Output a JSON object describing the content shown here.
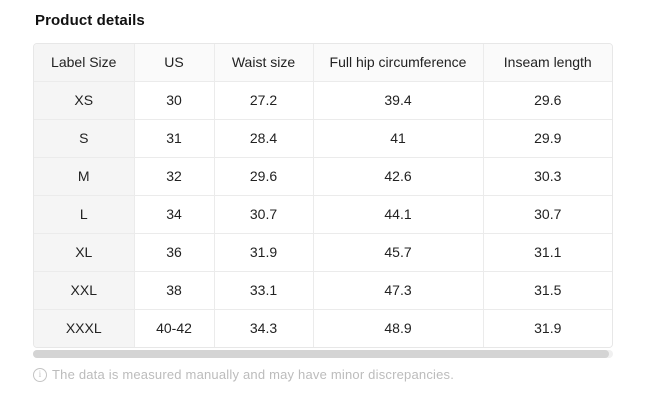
{
  "page": {
    "title": "Product details",
    "footer_note": "The data is measured manually and may have minor discrepancies.",
    "info_icon_glyph": "i"
  },
  "table": {
    "columns": [
      "Label Size",
      "US",
      "Waist size",
      "Full hip circumference",
      "Inseam length"
    ],
    "rows": [
      [
        "XS",
        "30",
        "27.2",
        "39.4",
        "29.6"
      ],
      [
        "S",
        "31",
        "28.4",
        "41",
        "29.9"
      ],
      [
        "M",
        "32",
        "29.6",
        "42.6",
        "30.3"
      ],
      [
        "L",
        "34",
        "30.7",
        "44.1",
        "30.7"
      ],
      [
        "XL",
        "36",
        "31.9",
        "45.7",
        "31.1"
      ],
      [
        "XXL",
        "38",
        "33.1",
        "47.3",
        "31.5"
      ],
      [
        "XXXL",
        "40-42",
        "34.3",
        "48.9",
        "31.9"
      ]
    ]
  },
  "colors": {
    "table_border": "#e7e7e7",
    "cell_divider": "#ebebeb",
    "header_row_bg": "#fafafa",
    "first_column_bg": "#f5f5f5",
    "scrollbar_thumb": "#d4d4d4",
    "scrollbar_track": "#f0f0f0",
    "footer_text": "#bcbcbc",
    "body_text": "#222222"
  }
}
